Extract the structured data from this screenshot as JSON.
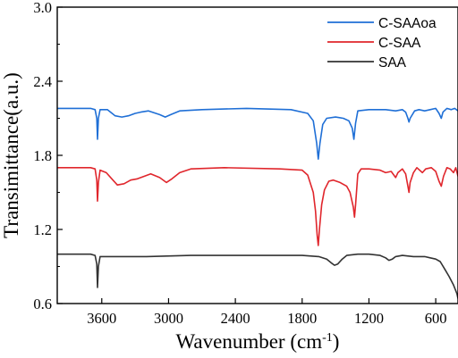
{
  "chart_data": {
    "type": "line",
    "xlabel_main": "Wavenumber (cm",
    "xlabel_sup": "-1",
    "xlabel_close": ")",
    "ylabel": "Transimittance(a.u.)",
    "xlim": [
      4000,
      400
    ],
    "ylim": [
      0.6,
      3.0
    ],
    "x_reversed": true,
    "grid": false,
    "legend_position": "top-right",
    "xticks": [
      3600,
      3000,
      2400,
      1800,
      1200,
      600
    ],
    "xtick_labels": [
      "3600",
      "3000",
      "2400",
      "1800",
      "1200",
      "600"
    ],
    "yticks": [
      0.6,
      1.2,
      1.8,
      2.4,
      3.0
    ],
    "ytick_labels": [
      "0.6",
      "1.2",
      "1.8",
      "2.4",
      "3.0"
    ],
    "series": [
      {
        "name": "C-SAAoa",
        "color": "#1f6fd6",
        "points": [
          [
            4000,
            2.18
          ],
          [
            3700,
            2.18
          ],
          [
            3660,
            2.17
          ],
          [
            3645,
            2.1
          ],
          [
            3638,
            1.93
          ],
          [
            3630,
            2.1
          ],
          [
            3615,
            2.17
          ],
          [
            3550,
            2.17
          ],
          [
            3480,
            2.12
          ],
          [
            3420,
            2.11
          ],
          [
            3360,
            2.12
          ],
          [
            3300,
            2.14
          ],
          [
            3250,
            2.15
          ],
          [
            3180,
            2.16
          ],
          [
            3080,
            2.13
          ],
          [
            3030,
            2.11
          ],
          [
            2980,
            2.13
          ],
          [
            2900,
            2.16
          ],
          [
            2700,
            2.17
          ],
          [
            2300,
            2.18
          ],
          [
            1900,
            2.17
          ],
          [
            1750,
            2.14
          ],
          [
            1700,
            2.08
          ],
          [
            1670,
            1.9
          ],
          [
            1655,
            1.77
          ],
          [
            1640,
            1.9
          ],
          [
            1615,
            2.05
          ],
          [
            1580,
            2.1
          ],
          [
            1500,
            2.11
          ],
          [
            1430,
            2.1
          ],
          [
            1380,
            2.08
          ],
          [
            1350,
            2.02
          ],
          [
            1335,
            1.93
          ],
          [
            1320,
            2.06
          ],
          [
            1300,
            2.16
          ],
          [
            1200,
            2.17
          ],
          [
            1050,
            2.17
          ],
          [
            960,
            2.16
          ],
          [
            900,
            2.17
          ],
          [
            870,
            2.15
          ],
          [
            850,
            2.1
          ],
          [
            840,
            2.07
          ],
          [
            830,
            2.1
          ],
          [
            790,
            2.16
          ],
          [
            750,
            2.17
          ],
          [
            700,
            2.16
          ],
          [
            650,
            2.17
          ],
          [
            600,
            2.18
          ],
          [
            570,
            2.14
          ],
          [
            550,
            2.1
          ],
          [
            535,
            2.15
          ],
          [
            500,
            2.18
          ],
          [
            460,
            2.17
          ],
          [
            430,
            2.18
          ],
          [
            400,
            2.16
          ]
        ]
      },
      {
        "name": "C-SAA",
        "color": "#e0262c",
        "points": [
          [
            4000,
            1.7
          ],
          [
            3700,
            1.7
          ],
          [
            3660,
            1.69
          ],
          [
            3645,
            1.6
          ],
          [
            3638,
            1.43
          ],
          [
            3630,
            1.58
          ],
          [
            3615,
            1.68
          ],
          [
            3560,
            1.66
          ],
          [
            3500,
            1.6
          ],
          [
            3460,
            1.56
          ],
          [
            3400,
            1.57
          ],
          [
            3340,
            1.6
          ],
          [
            3280,
            1.61
          ],
          [
            3220,
            1.63
          ],
          [
            3160,
            1.65
          ],
          [
            3080,
            1.62
          ],
          [
            3020,
            1.58
          ],
          [
            2970,
            1.61
          ],
          [
            2900,
            1.66
          ],
          [
            2800,
            1.69
          ],
          [
            2500,
            1.7
          ],
          [
            2000,
            1.69
          ],
          [
            1800,
            1.68
          ],
          [
            1750,
            1.64
          ],
          [
            1700,
            1.5
          ],
          [
            1680,
            1.35
          ],
          [
            1665,
            1.15
          ],
          [
            1655,
            1.07
          ],
          [
            1645,
            1.2
          ],
          [
            1625,
            1.4
          ],
          [
            1600,
            1.52
          ],
          [
            1560,
            1.59
          ],
          [
            1520,
            1.6
          ],
          [
            1460,
            1.58
          ],
          [
            1400,
            1.55
          ],
          [
            1370,
            1.5
          ],
          [
            1340,
            1.38
          ],
          [
            1330,
            1.3
          ],
          [
            1320,
            1.4
          ],
          [
            1300,
            1.65
          ],
          [
            1270,
            1.69
          ],
          [
            1200,
            1.69
          ],
          [
            1100,
            1.68
          ],
          [
            1050,
            1.66
          ],
          [
            1000,
            1.67
          ],
          [
            960,
            1.62
          ],
          [
            940,
            1.66
          ],
          [
            900,
            1.69
          ],
          [
            870,
            1.65
          ],
          [
            850,
            1.55
          ],
          [
            840,
            1.5
          ],
          [
            830,
            1.58
          ],
          [
            800,
            1.66
          ],
          [
            770,
            1.7
          ],
          [
            720,
            1.66
          ],
          [
            690,
            1.69
          ],
          [
            640,
            1.7
          ],
          [
            600,
            1.67
          ],
          [
            570,
            1.59
          ],
          [
            550,
            1.55
          ],
          [
            530,
            1.63
          ],
          [
            500,
            1.7
          ],
          [
            470,
            1.69
          ],
          [
            440,
            1.66
          ],
          [
            420,
            1.7
          ],
          [
            400,
            1.63
          ]
        ]
      },
      {
        "name": "SAA",
        "color": "#333333",
        "points": [
          [
            4000,
            1.0
          ],
          [
            3700,
            1.0
          ],
          [
            3660,
            0.99
          ],
          [
            3645,
            0.92
          ],
          [
            3638,
            0.73
          ],
          [
            3630,
            0.9
          ],
          [
            3615,
            0.98
          ],
          [
            3500,
            0.98
          ],
          [
            3200,
            0.98
          ],
          [
            2800,
            0.99
          ],
          [
            2400,
            0.99
          ],
          [
            2000,
            0.99
          ],
          [
            1800,
            0.99
          ],
          [
            1650,
            0.98
          ],
          [
            1580,
            0.96
          ],
          [
            1540,
            0.93
          ],
          [
            1510,
            0.91
          ],
          [
            1480,
            0.92
          ],
          [
            1440,
            0.96
          ],
          [
            1400,
            0.99
          ],
          [
            1300,
            1.0
          ],
          [
            1200,
            1.0
          ],
          [
            1100,
            0.99
          ],
          [
            1050,
            0.97
          ],
          [
            1020,
            0.95
          ],
          [
            990,
            0.96
          ],
          [
            960,
            0.98
          ],
          [
            900,
            0.99
          ],
          [
            800,
            0.98
          ],
          [
            700,
            0.98
          ],
          [
            650,
            0.97
          ],
          [
            600,
            0.96
          ],
          [
            560,
            0.94
          ],
          [
            520,
            0.88
          ],
          [
            480,
            0.82
          ],
          [
            440,
            0.75
          ],
          [
            410,
            0.68
          ],
          [
            400,
            0.64
          ]
        ]
      }
    ]
  }
}
